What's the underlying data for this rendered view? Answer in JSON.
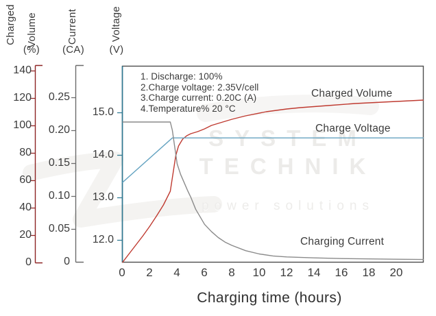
{
  "axes_headers": {
    "volume_word1": "Charged",
    "volume_word2": "Volume",
    "volume_unit": "(%)",
    "current_word": "Current",
    "current_unit": "(CA)",
    "voltage_word": "Voltage",
    "voltage_unit": "(V)"
  },
  "volume_axis": {
    "tick_labels": [
      "140",
      "120",
      "100",
      "80",
      "60",
      "40",
      "20",
      "0"
    ]
  },
  "current_axis": {
    "tick_labels": [
      "0.25",
      "0.20",
      "0.15",
      "0.10",
      "0.05",
      "0"
    ]
  },
  "voltage_axis": {
    "tick_labels": [
      "15.0",
      "14.0",
      "13.0",
      "12.0"
    ]
  },
  "x_axis": {
    "title": "Charging time (hours)",
    "tick_labels": [
      "0",
      "2",
      "4",
      "6",
      "8",
      "10",
      "12",
      "14",
      "16",
      "18",
      "20"
    ]
  },
  "annotation": {
    "lines": [
      "1. Discharge: 100%",
      "2.Charge voltage: 2.35V/cell",
      "3.Charge current: 0.20C (A)",
      "4.Temperature% 20 °C"
    ]
  },
  "curve_labels": {
    "volume": "Charged Volume",
    "voltage": "Charge Voltage",
    "current": "Charging Current"
  },
  "watermark": {
    "line1": "SYSTEM",
    "line2": "TECHNIK",
    "line3": "power solutions"
  },
  "colors": {
    "charged_volume_curve": "#bf3a30",
    "charge_voltage_curve": "#64a3c1",
    "charging_current_curve": "#8a8a8a",
    "volume_spine": "#8e2424",
    "current_spine": "#6b6b6b",
    "voltage_spine": "#2f7a93",
    "frame": "#4d4d4d",
    "text": "#3b3b3b",
    "watermark": "#ecebe9"
  },
  "chart_data": {
    "type": "line",
    "title": "",
    "xlabel": "Charging time (hours)",
    "x_range_hours": [
      0,
      22
    ],
    "x_ticks": [
      0,
      2,
      4,
      6,
      8,
      10,
      12,
      14,
      16,
      18,
      20
    ],
    "grid": false,
    "legend_position": "inline-labels",
    "axes": [
      {
        "id": "volume",
        "label": "Charged Volume (%)",
        "range": [
          0,
          140
        ],
        "ticks": [
          0,
          20,
          40,
          60,
          80,
          100,
          120,
          140
        ]
      },
      {
        "id": "current",
        "label": "Current (CA)",
        "range": [
          0,
          0.25
        ],
        "ticks": [
          0,
          0.05,
          0.1,
          0.15,
          0.2,
          0.25
        ]
      },
      {
        "id": "voltage",
        "label": "Voltage (V)",
        "range": [
          11.5,
          15.55
        ],
        "ticks": [
          12.0,
          13.0,
          14.0,
          15.0
        ]
      }
    ],
    "annotations": [
      "1. Discharge: 100%",
      "2.Charge voltage: 2.35V/cell",
      "3.Charge current: 0.20C (A)",
      "4.Temperature% 20 °C"
    ],
    "series": [
      {
        "name": "Charged Volume",
        "axis": "volume",
        "color": "#bf3a30",
        "points": [
          [
            0,
            0
          ],
          [
            0.5,
            6.5
          ],
          [
            1,
            13
          ],
          [
            1.5,
            19.5
          ],
          [
            2,
            26.5
          ],
          [
            2.5,
            34
          ],
          [
            3,
            42
          ],
          [
            3.3,
            48
          ],
          [
            3.5,
            52
          ],
          [
            3.7,
            65
          ],
          [
            3.9,
            78
          ],
          [
            4.1,
            85
          ],
          [
            4.4,
            90
          ],
          [
            4.7,
            92.5
          ],
          [
            5,
            94
          ],
          [
            5.5,
            95.5
          ],
          [
            6,
            97.5
          ],
          [
            6.5,
            100
          ],
          [
            7,
            101.5
          ],
          [
            8,
            104.5
          ],
          [
            9,
            107
          ],
          [
            10.5,
            110
          ],
          [
            12,
            112
          ],
          [
            13,
            113
          ],
          [
            15,
            114.5
          ],
          [
            17,
            116
          ],
          [
            19,
            117
          ],
          [
            22,
            118.5
          ]
        ]
      },
      {
        "name": "Charge Voltage",
        "axis": "voltage",
        "color": "#64a3c1",
        "points": [
          [
            0,
            13.35
          ],
          [
            3.65,
            14.4
          ],
          [
            22,
            14.4
          ]
        ]
      },
      {
        "name": "Charging Current",
        "axis": "current",
        "color": "#8a8a8a",
        "points": [
          [
            0,
            0.2125
          ],
          [
            3.5,
            0.2125
          ],
          [
            3.65,
            0.2
          ],
          [
            3.8,
            0.178
          ],
          [
            4,
            0.149
          ],
          [
            4.25,
            0.133
          ],
          [
            4.5,
            0.121
          ],
          [
            4.75,
            0.109
          ],
          [
            5,
            0.098
          ],
          [
            5.35,
            0.08
          ],
          [
            6,
            0.057
          ],
          [
            6.5,
            0.046
          ],
          [
            7,
            0.037
          ],
          [
            7.5,
            0.03
          ],
          [
            8,
            0.025
          ],
          [
            9,
            0.017
          ],
          [
            10,
            0.012
          ],
          [
            11,
            0.009
          ],
          [
            12,
            0.0075
          ],
          [
            14,
            0.006
          ],
          [
            16,
            0.005
          ],
          [
            18,
            0.0045
          ],
          [
            20,
            0.004
          ],
          [
            22,
            0.0035
          ]
        ]
      }
    ]
  }
}
